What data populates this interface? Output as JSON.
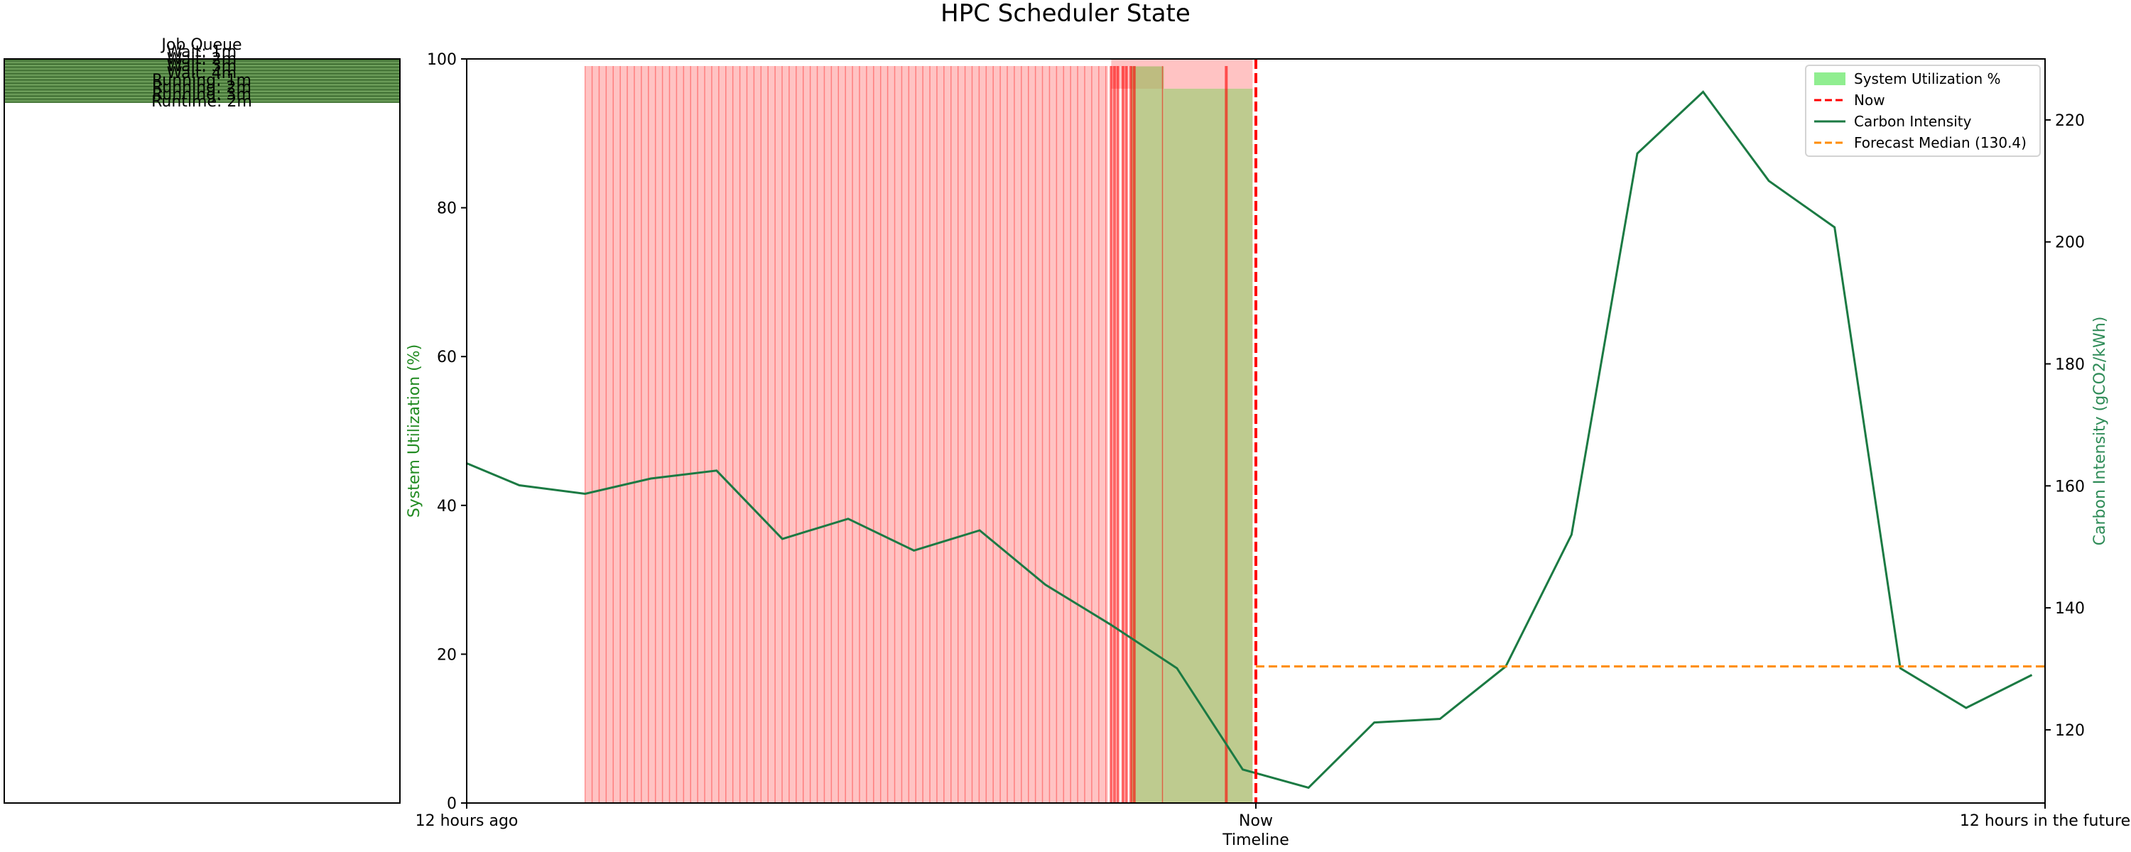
{
  "figure": {
    "title": "HPC Scheduler State"
  },
  "left_panel": {
    "title": "Job Queue",
    "labels": [
      "Job Queue",
      "Wait: 1m",
      "Wait: 2m",
      "Wait: 3m",
      "Wait: 4m",
      "Running: 1m",
      "Running: 2m",
      "Running: 3m",
      "Runtime: 2m"
    ],
    "bar_color": "#4a7a3c"
  },
  "chart_data": {
    "type": "line",
    "title": "HPC Scheduler State",
    "xlabel": "Timeline",
    "ylabel": "System Utilization (%)",
    "ylabel_right": "Carbon Intensity (gCO2/kWh)",
    "x_tick_labels": [
      "12 hours ago",
      "Now",
      "12 hours in the future"
    ],
    "xlim": [
      -12,
      12
    ],
    "ylim": [
      0,
      100
    ],
    "ylim_right": [
      108,
      230
    ],
    "y_ticks": [
      0,
      20,
      40,
      60,
      80,
      100
    ],
    "y_ticks_right": [
      120,
      140,
      160,
      180,
      200,
      220
    ],
    "now": 0,
    "legend": [
      "System Utilization %",
      "Now",
      "Carbon Intensity",
      "Forecast Median (130.4)"
    ],
    "legend_position": "top-right",
    "series": [
      {
        "name": "Carbon Intensity",
        "color": "#1b7a43",
        "x": [
          -12,
          -11.2,
          -10.2,
          -9.2,
          -8.2,
          -7.2,
          -6.2,
          -5.2,
          -4.2,
          -3.2,
          -2.2,
          -1.2,
          -0.2,
          0.8,
          1.8,
          2.8,
          3.8,
          4.8,
          5.8,
          6.8,
          7.8,
          8.8,
          9.8,
          10.8,
          11.8
        ],
        "y": [
          163.7,
          160.1,
          158.7,
          161.2,
          162.5,
          151.3,
          154.6,
          149.4,
          152.7,
          143.8,
          137.2,
          130.1,
          113.5,
          110.5,
          121.2,
          121.8,
          130.4,
          152.0,
          214.5,
          224.6,
          210.0,
          202.4,
          130.1,
          123.6,
          129.0
        ]
      },
      {
        "name": "Forecast Median (130.4)",
        "color": "#ff8c00",
        "x": [
          0,
          12
        ],
        "y": [
          130.4,
          130.4
        ]
      }
    ],
    "utilization": {
      "name": "System Utilization %",
      "color": "#90ee90",
      "steps": [
        {
          "x0": -1.9,
          "x1": -1.4,
          "y": 99
        },
        {
          "x0": -1.4,
          "x1": -0.05,
          "y": 96
        }
      ]
    },
    "job_lines": {
      "color": "#ff0000",
      "regular_from": -10.2,
      "regular_to": -2.25,
      "regular_step": 0.107,
      "extra": [
        -2.2,
        -2.15,
        -2.1,
        -2.02,
        -1.97,
        -1.9,
        -1.85,
        -0.45
      ],
      "thin": [
        -1.42
      ],
      "bands": [
        {
          "x0": -2.2,
          "x1": -0.05,
          "y0": 96,
          "y1": 100
        }
      ]
    }
  }
}
